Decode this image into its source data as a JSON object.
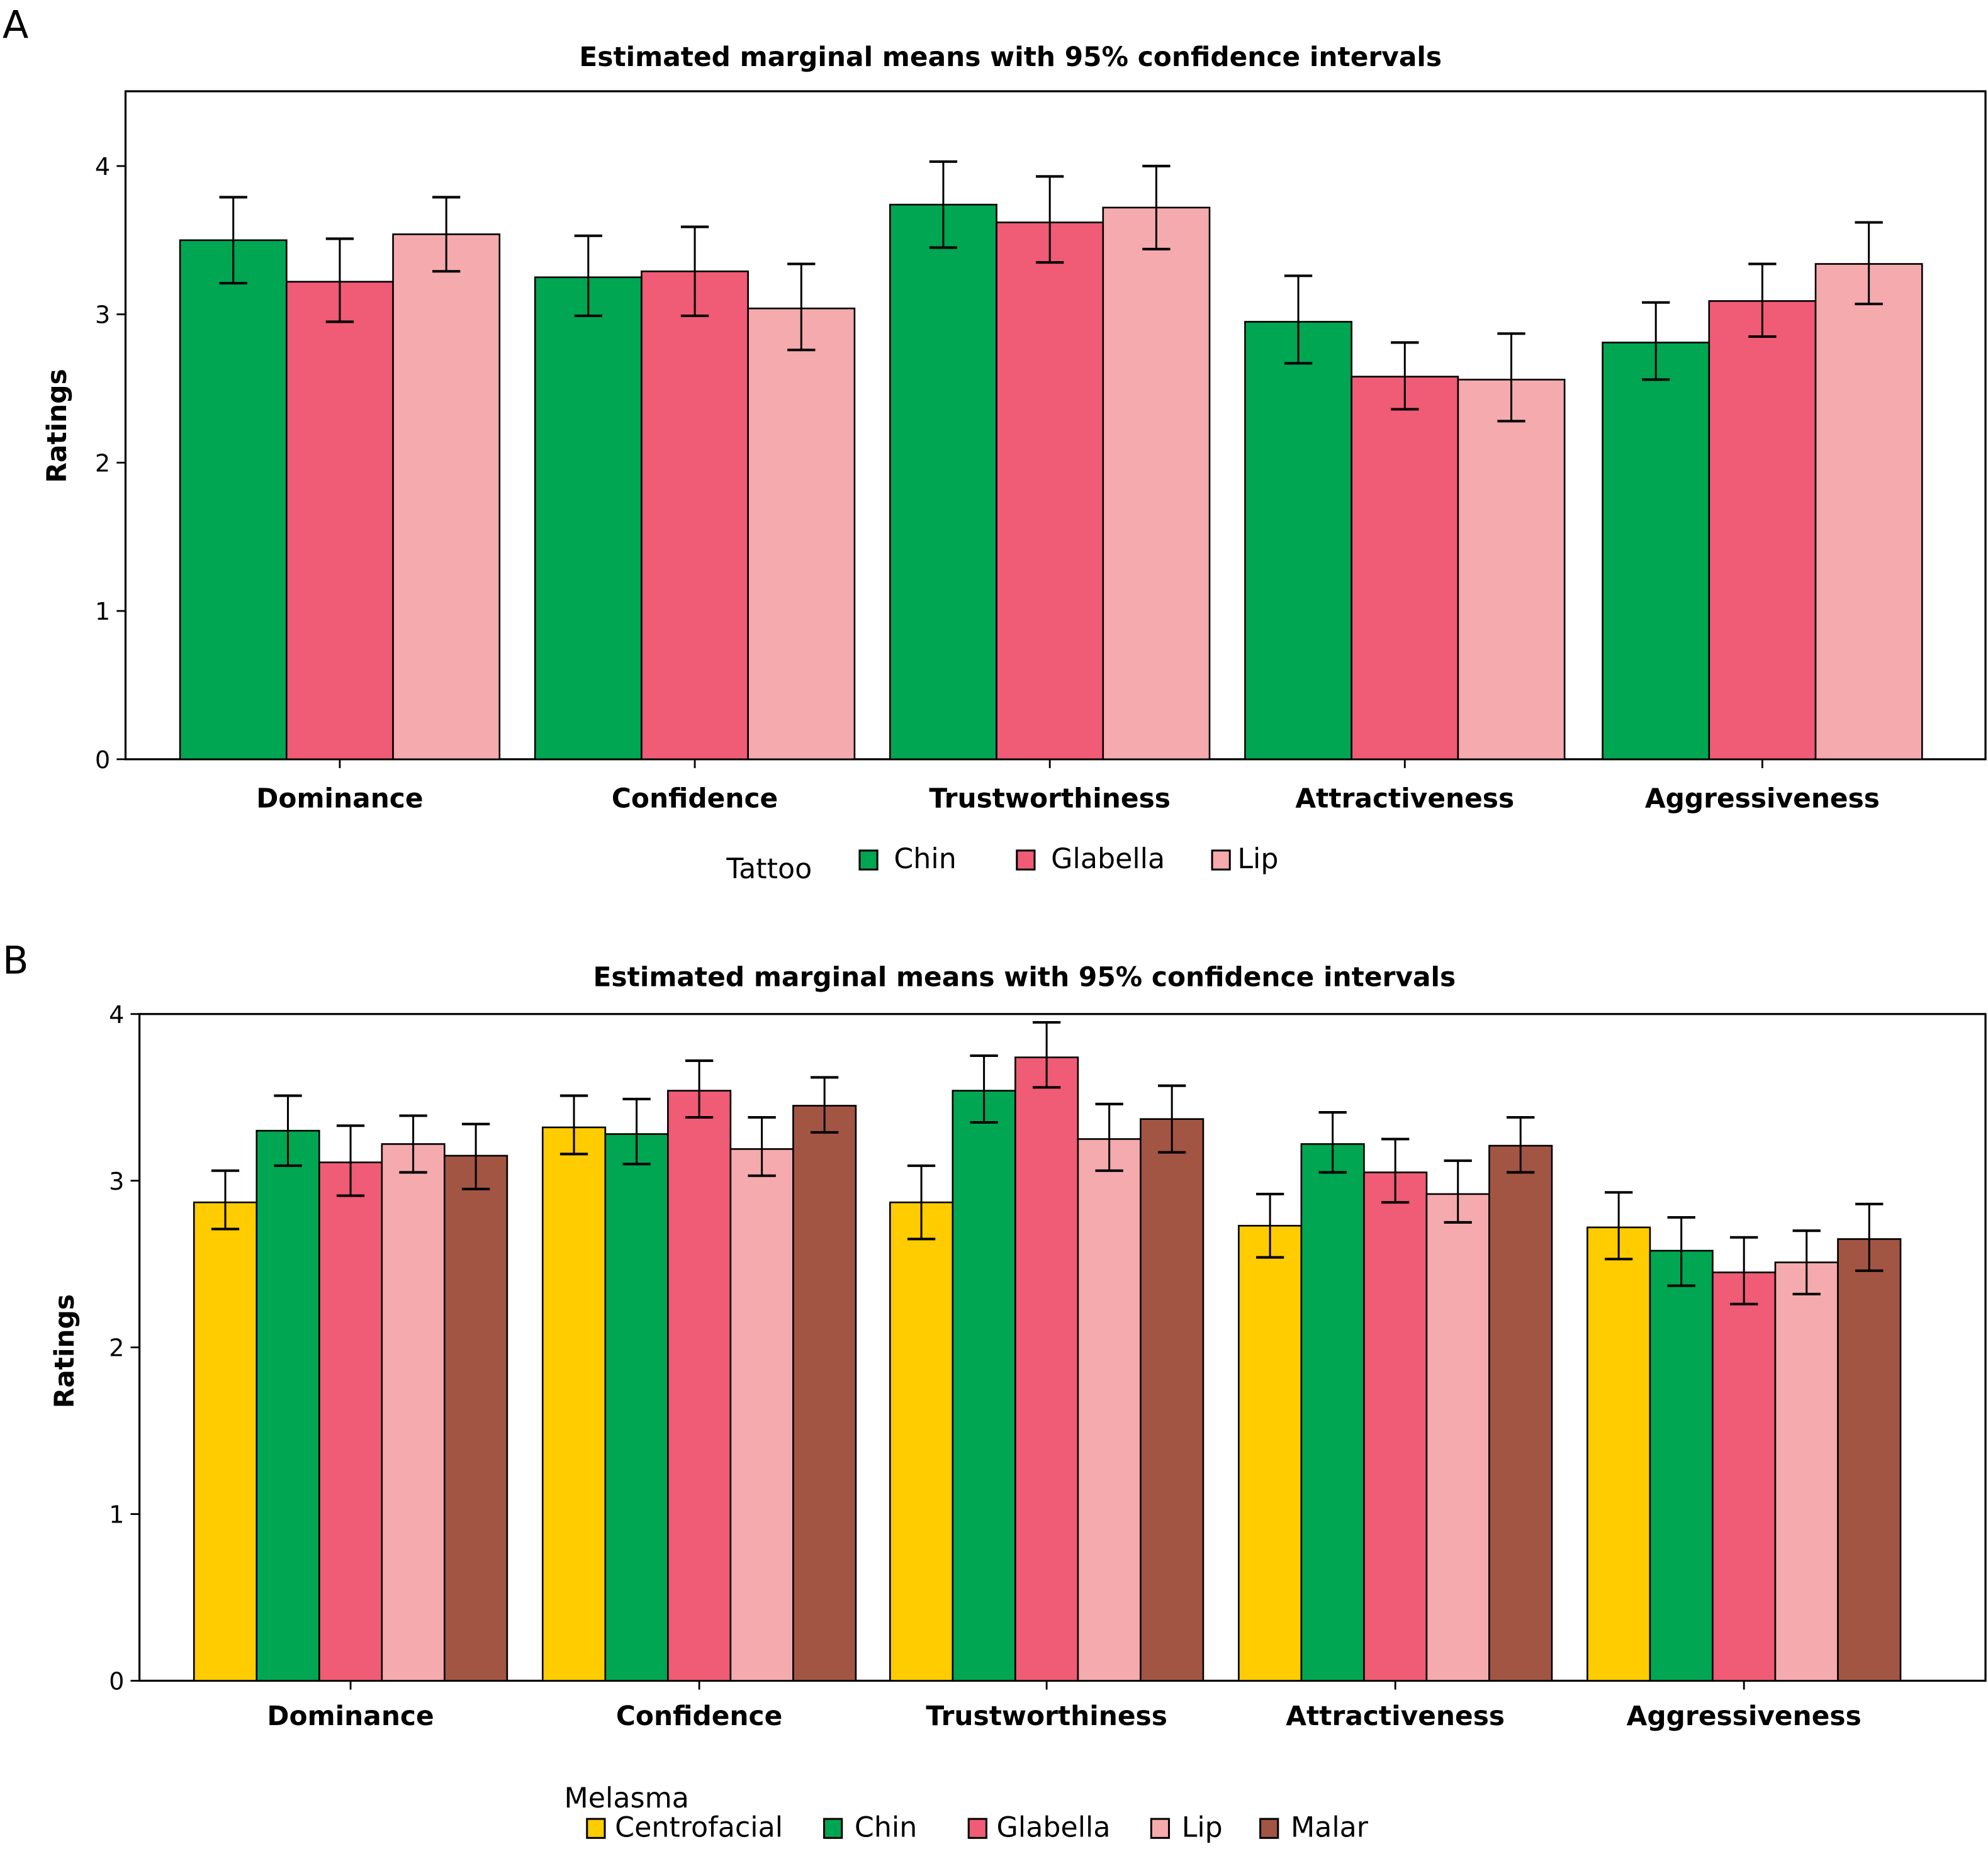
{
  "panels": [
    {
      "letter": "A",
      "title": "Estimated marginal means with 95% confidence intervals",
      "legend_title": "Tattoo"
    },
    {
      "letter": "B",
      "title": "Estimated marginal means with 95% confidence intervals",
      "legend_title": "Melasma"
    }
  ],
  "chart_data": [
    {
      "type": "bar",
      "title": "Estimated marginal means with 95% confidence intervals",
      "xlabel": "",
      "ylabel": "Ratings",
      "ylim": [
        0,
        4.5
      ],
      "yticks": [
        0,
        1,
        2,
        3,
        4
      ],
      "grid": false,
      "legend_title": "Tattoo",
      "legend_position": "bottom",
      "categories": [
        "Dominance",
        "Confidence",
        "Trustworthiness",
        "Attractiveness",
        "Aggressiveness"
      ],
      "series": [
        {
          "name": "Chin",
          "color": "#00a651",
          "values": [
            3.5,
            3.25,
            3.74,
            2.95,
            2.81
          ],
          "ci_low": [
            3.21,
            2.99,
            3.45,
            2.67,
            2.56
          ],
          "ci_high": [
            3.79,
            3.53,
            4.03,
            3.26,
            3.08
          ]
        },
        {
          "name": "Glabella",
          "color": "#f05b75",
          "values": [
            3.22,
            3.29,
            3.62,
            2.58,
            3.09
          ],
          "ci_low": [
            2.95,
            2.99,
            3.35,
            2.36,
            2.85
          ],
          "ci_high": [
            3.51,
            3.59,
            3.93,
            2.81,
            3.34
          ]
        },
        {
          "name": "Lip",
          "color": "#f5aaae",
          "values": [
            3.54,
            3.04,
            3.72,
            2.56,
            3.34
          ],
          "ci_low": [
            3.29,
            2.76,
            3.44,
            2.28,
            3.07
          ],
          "ci_high": [
            3.79,
            3.34,
            4.0,
            2.87,
            3.62
          ]
        }
      ]
    },
    {
      "type": "bar",
      "title": "Estimated marginal means with 95% confidence intervals",
      "xlabel": "",
      "ylabel": "Ratings",
      "ylim": [
        0,
        4
      ],
      "yticks": [
        0,
        1,
        2,
        3,
        4
      ],
      "grid": false,
      "legend_title": "Melasma",
      "legend_position": "bottom",
      "categories": [
        "Dominance",
        "Confidence",
        "Trustworthiness",
        "Attractiveness",
        "Aggressiveness"
      ],
      "series": [
        {
          "name": "Centrofacial",
          "color": "#ffcc00",
          "values": [
            2.87,
            3.32,
            2.87,
            2.73,
            2.72
          ],
          "ci_low": [
            2.71,
            3.16,
            2.65,
            2.54,
            2.53
          ],
          "ci_high": [
            3.06,
            3.51,
            3.09,
            2.92,
            2.93
          ]
        },
        {
          "name": "Chin",
          "color": "#00a651",
          "values": [
            3.3,
            3.28,
            3.54,
            3.22,
            2.58
          ],
          "ci_low": [
            3.09,
            3.1,
            3.35,
            3.05,
            2.37
          ],
          "ci_high": [
            3.51,
            3.49,
            3.75,
            3.41,
            2.78
          ]
        },
        {
          "name": "Glabella",
          "color": "#f05b75",
          "values": [
            3.11,
            3.54,
            3.74,
            3.05,
            2.45
          ],
          "ci_low": [
            2.91,
            3.38,
            3.56,
            2.87,
            2.26
          ],
          "ci_high": [
            3.33,
            3.72,
            3.95,
            3.25,
            2.66
          ]
        },
        {
          "name": "Lip",
          "color": "#f5aaae",
          "values": [
            3.22,
            3.19,
            3.25,
            2.92,
            2.51
          ],
          "ci_low": [
            3.05,
            3.03,
            3.06,
            2.75,
            2.32
          ],
          "ci_high": [
            3.39,
            3.38,
            3.46,
            3.12,
            2.7
          ]
        },
        {
          "name": "Malar",
          "color": "#a35544",
          "values": [
            3.15,
            3.45,
            3.37,
            3.21,
            2.65
          ],
          "ci_low": [
            2.95,
            3.29,
            3.17,
            3.05,
            2.46
          ],
          "ci_high": [
            3.34,
            3.62,
            3.57,
            3.38,
            2.86
          ]
        }
      ]
    }
  ]
}
